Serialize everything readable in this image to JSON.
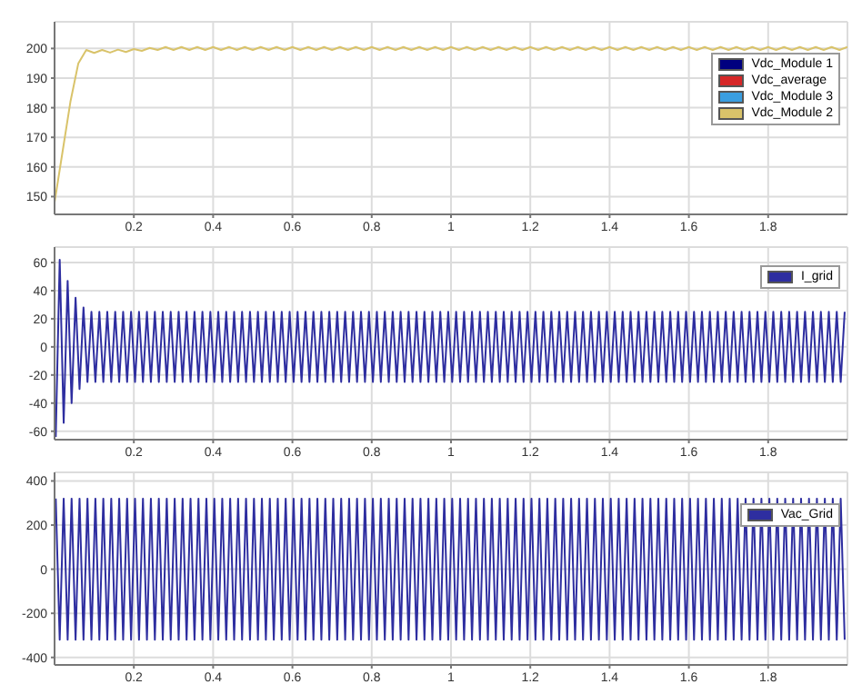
{
  "chart_data": [
    {
      "type": "line",
      "xlim": [
        0,
        2
      ],
      "xticks": [
        0.2,
        0.4,
        0.6,
        0.8,
        1,
        1.2,
        1.4,
        1.6,
        1.8
      ],
      "ylim": [
        144,
        209
      ],
      "yticks": [
        150,
        160,
        170,
        180,
        190,
        200
      ],
      "grid": true,
      "legend": "top right",
      "x": [
        0,
        0.02,
        0.04,
        0.06,
        0.08,
        0.1,
        0.12,
        0.14,
        0.16,
        0.18,
        0.2,
        0.22,
        0.24,
        0.26,
        0.28,
        0.3,
        0.32,
        0.34,
        0.36,
        0.38,
        0.4,
        0.42,
        0.44,
        0.46,
        0.48,
        0.5,
        0.52,
        0.54,
        0.56,
        0.58,
        0.6,
        0.62,
        0.64,
        0.66,
        0.68,
        0.7,
        0.72,
        0.74,
        0.76,
        0.78,
        0.8,
        0.82,
        0.84,
        0.86,
        0.88,
        0.9,
        0.92,
        0.94,
        0.96,
        0.98,
        1,
        1.02,
        1.04,
        1.06,
        1.08,
        1.1,
        1.12,
        1.14,
        1.16,
        1.18,
        1.2,
        1.22,
        1.24,
        1.26,
        1.28,
        1.3,
        1.32,
        1.34,
        1.36,
        1.38,
        1.4,
        1.42,
        1.44,
        1.46,
        1.48,
        1.5,
        1.52,
        1.54,
        1.56,
        1.58,
        1.6,
        1.62,
        1.64,
        1.66,
        1.68,
        1.7,
        1.72,
        1.74,
        1.76,
        1.78,
        1.8,
        1.82,
        1.84,
        1.86,
        1.88,
        1.9,
        1.92,
        1.94,
        1.96,
        1.98,
        2
      ],
      "series": [
        {
          "name": "Vdc_Module 1",
          "color": "#00007f",
          "values": [
            null,
            null,
            null,
            null,
            null,
            null,
            null,
            null,
            null,
            null,
            null,
            null,
            null,
            null,
            null,
            null,
            null,
            null,
            null,
            null,
            null,
            null,
            null,
            null,
            null,
            null,
            null,
            null,
            null,
            null,
            null,
            null,
            null,
            null,
            null,
            null,
            null,
            null,
            null,
            null,
            null,
            null,
            null,
            null,
            null,
            null,
            null,
            null,
            null,
            null,
            null,
            null,
            null,
            null,
            null,
            null,
            null,
            null,
            null,
            null,
            null,
            null,
            null,
            null,
            null,
            null,
            null,
            null,
            null,
            null,
            null,
            null,
            null,
            null,
            null,
            null,
            null,
            null,
            null,
            null,
            null,
            null,
            null,
            null,
            null,
            null,
            null,
            null,
            null,
            null,
            null,
            null,
            null,
            null,
            null,
            null,
            null,
            null,
            null,
            null,
            null
          ]
        },
        {
          "name": "Vdc_average",
          "color": "#d62728",
          "values": [
            null,
            null,
            null,
            null,
            null,
            null,
            null,
            null,
            null,
            null,
            null,
            null,
            null,
            null,
            null,
            null,
            null,
            null,
            null,
            null,
            null,
            null,
            null,
            null,
            null,
            null,
            null,
            null,
            null,
            null,
            null,
            null,
            null,
            null,
            null,
            null,
            null,
            null,
            null,
            null,
            null,
            null,
            null,
            null,
            null,
            null,
            null,
            null,
            null,
            null,
            null,
            null,
            null,
            null,
            null,
            null,
            null,
            null,
            null,
            null,
            null,
            null,
            null,
            null,
            null,
            null,
            null,
            null,
            null,
            null,
            null,
            null,
            null,
            null,
            null,
            null,
            null,
            null,
            null,
            null,
            null,
            null,
            null,
            null,
            null,
            null,
            null,
            null,
            null,
            null,
            null,
            null,
            null,
            null,
            null,
            null,
            null,
            null,
            null,
            null,
            null
          ]
        },
        {
          "name": "Vdc_Module 3",
          "color": "#3a9ee0",
          "values": [
            null,
            null,
            null,
            null,
            null,
            null,
            null,
            null,
            null,
            null,
            null,
            null,
            null,
            null,
            null,
            null,
            null,
            null,
            null,
            null,
            null,
            null,
            null,
            null,
            null,
            null,
            null,
            null,
            null,
            null,
            null,
            null,
            null,
            null,
            null,
            null,
            null,
            null,
            null,
            null,
            null,
            null,
            null,
            null,
            null,
            null,
            null,
            null,
            null,
            null,
            null,
            null,
            null,
            null,
            null,
            null,
            null,
            null,
            null,
            null,
            null,
            null,
            null,
            null,
            null,
            null,
            null,
            null,
            null,
            null,
            null,
            null,
            null,
            null,
            null,
            null,
            null,
            null,
            null,
            null,
            null,
            null,
            null,
            null,
            null,
            null,
            null,
            null,
            null,
            null,
            null,
            null,
            null,
            null,
            null,
            null,
            null,
            null,
            null,
            null,
            null
          ]
        },
        {
          "name": "Vdc_Module 2",
          "color": "#d9c36a",
          "values": [
            148,
            165,
            182,
            195,
            199.5,
            198.5,
            199.5,
            198.6,
            199.6,
            198.8,
            199.8,
            199.2,
            200.2,
            199.5,
            200.5,
            199.5,
            200.5,
            199.5,
            200.5,
            199.5,
            200.5,
            199.5,
            200.5,
            199.5,
            200.5,
            199.5,
            200.5,
            199.5,
            200.5,
            199.5,
            200.5,
            199.5,
            200.5,
            199.5,
            200.5,
            199.5,
            200.5,
            199.5,
            200.5,
            199.5,
            200.5,
            199.5,
            200.5,
            199.5,
            200.5,
            199.5,
            200.5,
            199.5,
            200.5,
            199.5,
            200.5,
            199.5,
            200.5,
            199.5,
            200.5,
            199.5,
            200.5,
            199.5,
            200.5,
            199.5,
            200.5,
            199.5,
            200.5,
            199.5,
            200.5,
            199.5,
            200.5,
            199.5,
            200.5,
            199.5,
            200.5,
            199.5,
            200.5,
            199.5,
            200.5,
            199.5,
            200.5,
            199.5,
            200.5,
            199.5,
            200.5,
            199.5,
            200.5,
            199.5,
            200.5,
            199.5,
            200.5,
            199.5,
            200.5,
            199.5,
            200.5,
            199.5,
            200.5,
            199.5,
            200.5,
            199.5,
            200.5,
            199.5,
            200.5,
            199.5,
            200.5
          ]
        }
      ]
    },
    {
      "type": "line",
      "xlim": [
        0,
        2
      ],
      "xticks": [
        0.2,
        0.4,
        0.6,
        0.8,
        1,
        1.2,
        1.4,
        1.6,
        1.8
      ],
      "ylim": [
        -66,
        71
      ],
      "yticks": [
        -60,
        -40,
        -20,
        0,
        20,
        40,
        60
      ],
      "grid": true,
      "legend": "top right",
      "x": [
        0.003,
        0.013,
        0.023,
        0.033,
        0.043,
        0.053,
        0.063,
        0.073,
        0.083,
        0.093,
        0.103,
        0.113,
        0.123,
        0.133,
        0.143,
        0.153,
        0.163,
        0.173,
        0.183,
        0.193,
        0.203,
        0.213,
        0.223,
        0.233,
        0.243,
        0.253,
        0.263,
        0.273,
        0.283,
        0.293,
        0.303,
        0.313,
        0.323,
        0.333,
        0.343,
        0.353,
        0.363,
        0.373,
        0.383,
        0.393,
        0.403,
        0.413,
        0.423,
        0.433,
        0.443,
        0.453,
        0.463,
        0.473,
        0.483,
        0.493,
        0.503,
        0.513,
        0.523,
        0.533,
        0.543,
        0.553,
        0.563,
        0.573,
        0.583,
        0.593,
        0.603,
        0.613,
        0.623,
        0.633,
        0.643,
        0.653,
        0.663,
        0.673,
        0.683,
        0.693,
        0.703,
        0.713,
        0.723,
        0.733,
        0.743,
        0.753,
        0.763,
        0.773,
        0.783,
        0.793,
        0.803,
        0.813,
        0.823,
        0.833,
        0.843,
        0.853,
        0.863,
        0.873,
        0.883,
        0.893,
        0.903,
        0.913,
        0.923,
        0.933,
        0.943,
        0.953,
        0.963,
        0.973,
        0.983,
        0.993,
        1.003,
        1.013,
        1.023,
        1.033,
        1.043,
        1.053,
        1.063,
        1.073,
        1.083,
        1.093,
        1.103,
        1.113,
        1.123,
        1.133,
        1.143,
        1.153,
        1.163,
        1.173,
        1.183,
        1.193,
        1.203,
        1.213,
        1.223,
        1.233,
        1.243,
        1.253,
        1.263,
        1.273,
        1.283,
        1.293,
        1.303,
        1.313,
        1.323,
        1.333,
        1.343,
        1.353,
        1.363,
        1.373,
        1.383,
        1.393,
        1.403,
        1.413,
        1.423,
        1.433,
        1.443,
        1.453,
        1.463,
        1.473,
        1.483,
        1.493,
        1.503,
        1.513,
        1.523,
        1.533,
        1.543,
        1.553,
        1.563,
        1.573,
        1.583,
        1.593,
        1.603,
        1.613,
        1.623,
        1.633,
        1.643,
        1.653,
        1.663,
        1.673,
        1.683,
        1.693,
        1.703,
        1.713,
        1.723,
        1.733,
        1.743,
        1.753,
        1.763,
        1.773,
        1.783,
        1.793,
        1.803,
        1.813,
        1.823,
        1.833,
        1.843,
        1.853,
        1.863,
        1.873,
        1.883,
        1.893,
        1.903,
        1.913,
        1.923,
        1.933,
        1.943,
        1.953,
        1.963,
        1.973,
        1.983,
        1.993
      ],
      "series": [
        {
          "name": "I_grid",
          "color": "#2e2ea0",
          "values": [
            -64,
            62,
            -54,
            47,
            -40,
            35,
            -30,
            28,
            -25,
            25,
            -25,
            25,
            -25,
            25,
            -25,
            25,
            -25,
            25,
            -25,
            25,
            -25,
            25,
            -25,
            25,
            -25,
            25,
            -25,
            25,
            -25,
            25,
            -25,
            25,
            -25,
            25,
            -25,
            25,
            -25,
            25,
            -25,
            25,
            -25,
            25,
            -25,
            25,
            -25,
            25,
            -25,
            25,
            -25,
            25,
            -25,
            25,
            -25,
            25,
            -25,
            25,
            -25,
            25,
            -25,
            25,
            -25,
            25,
            -25,
            25,
            -25,
            25,
            -25,
            25,
            -25,
            25,
            -25,
            25,
            -25,
            25,
            -25,
            25,
            -25,
            25,
            -25,
            25,
            -25,
            25,
            -25,
            25,
            -25,
            25,
            -25,
            25,
            -25,
            25,
            -25,
            25,
            -25,
            25,
            -25,
            25,
            -25,
            25,
            -25,
            25,
            -25,
            25,
            -25,
            25,
            -25,
            25,
            -25,
            25,
            -25,
            25,
            -25,
            25,
            -25,
            25,
            -25,
            25,
            -25,
            25,
            -25,
            25,
            -25,
            25,
            -25,
            25,
            -25,
            25,
            -25,
            25,
            -25,
            25,
            -25,
            25,
            -25,
            25,
            -25,
            25,
            -25,
            25,
            -25,
            25,
            -25,
            25,
            -25,
            25,
            -25,
            25,
            -25,
            25,
            -25,
            25,
            -25,
            25,
            -25,
            25,
            -25,
            25,
            -25,
            25,
            -25,
            25,
            -25,
            25,
            -25,
            25,
            -25,
            25,
            -25,
            25,
            -25,
            25,
            -25,
            25,
            -25,
            25,
            -25,
            25,
            -25,
            25,
            -25,
            25,
            -25,
            25,
            -25,
            25,
            -25,
            25,
            -25,
            25,
            -25,
            25,
            -25,
            25,
            -25,
            25,
            -25,
            25,
            -25,
            25,
            -25,
            25
          ]
        }
      ]
    },
    {
      "type": "line",
      "xlim": [
        0,
        2
      ],
      "xticks": [
        0.2,
        0.4,
        0.6,
        0.8,
        1,
        1.2,
        1.4,
        1.6,
        1.8
      ],
      "ylim": [
        -434,
        439
      ],
      "yticks": [
        -400,
        -200,
        0,
        200,
        400
      ],
      "grid": true,
      "legend": "top right",
      "x": [
        0.003,
        0.013,
        0.023,
        0.033,
        0.043,
        0.053,
        0.063,
        0.073,
        0.083,
        0.093,
        0.103,
        0.113,
        0.123,
        0.133,
        0.143,
        0.153,
        0.163,
        0.173,
        0.183,
        0.193,
        0.203,
        0.213,
        0.223,
        0.233,
        0.243,
        0.253,
        0.263,
        0.273,
        0.283,
        0.293,
        0.303,
        0.313,
        0.323,
        0.333,
        0.343,
        0.353,
        0.363,
        0.373,
        0.383,
        0.393,
        0.403,
        0.413,
        0.423,
        0.433,
        0.443,
        0.453,
        0.463,
        0.473,
        0.483,
        0.493,
        0.503,
        0.513,
        0.523,
        0.533,
        0.543,
        0.553,
        0.563,
        0.573,
        0.583,
        0.593,
        0.603,
        0.613,
        0.623,
        0.633,
        0.643,
        0.653,
        0.663,
        0.673,
        0.683,
        0.693,
        0.703,
        0.713,
        0.723,
        0.733,
        0.743,
        0.753,
        0.763,
        0.773,
        0.783,
        0.793,
        0.803,
        0.813,
        0.823,
        0.833,
        0.843,
        0.853,
        0.863,
        0.873,
        0.883,
        0.893,
        0.903,
        0.913,
        0.923,
        0.933,
        0.943,
        0.953,
        0.963,
        0.973,
        0.983,
        0.993,
        1.003,
        1.013,
        1.023,
        1.033,
        1.043,
        1.053,
        1.063,
        1.073,
        1.083,
        1.093,
        1.103,
        1.113,
        1.123,
        1.133,
        1.143,
        1.153,
        1.163,
        1.173,
        1.183,
        1.193,
        1.203,
        1.213,
        1.223,
        1.233,
        1.243,
        1.253,
        1.263,
        1.273,
        1.283,
        1.293,
        1.303,
        1.313,
        1.323,
        1.333,
        1.343,
        1.353,
        1.363,
        1.373,
        1.383,
        1.393,
        1.403,
        1.413,
        1.423,
        1.433,
        1.443,
        1.453,
        1.463,
        1.473,
        1.483,
        1.493,
        1.503,
        1.513,
        1.523,
        1.533,
        1.543,
        1.553,
        1.563,
        1.573,
        1.583,
        1.593,
        1.603,
        1.613,
        1.623,
        1.633,
        1.643,
        1.653,
        1.663,
        1.673,
        1.683,
        1.693,
        1.703,
        1.713,
        1.723,
        1.733,
        1.743,
        1.753,
        1.763,
        1.773,
        1.783,
        1.793,
        1.803,
        1.813,
        1.823,
        1.833,
        1.843,
        1.853,
        1.863,
        1.873,
        1.883,
        1.893,
        1.903,
        1.913,
        1.923,
        1.933,
        1.943,
        1.953,
        1.963,
        1.973,
        1.983,
        1.993
      ],
      "series": [
        {
          "name": "Vac_Grid",
          "color": "#2e2ea0",
          "values": [
            320,
            -320,
            320,
            -320,
            320,
            -320,
            320,
            -320,
            320,
            -320,
            320,
            -320,
            320,
            -320,
            320,
            -320,
            320,
            -320,
            320,
            -320,
            320,
            -320,
            320,
            -320,
            320,
            -320,
            320,
            -320,
            320,
            -320,
            320,
            -320,
            320,
            -320,
            320,
            -320,
            320,
            -320,
            320,
            -320,
            320,
            -320,
            320,
            -320,
            320,
            -320,
            320,
            -320,
            320,
            -320,
            320,
            -320,
            320,
            -320,
            320,
            -320,
            320,
            -320,
            320,
            -320,
            320,
            -320,
            320,
            -320,
            320,
            -320,
            320,
            -320,
            320,
            -320,
            320,
            -320,
            320,
            -320,
            320,
            -320,
            320,
            -320,
            320,
            -320,
            320,
            -320,
            320,
            -320,
            320,
            -320,
            320,
            -320,
            320,
            -320,
            320,
            -320,
            320,
            -320,
            320,
            -320,
            320,
            -320,
            320,
            -320,
            320,
            -320,
            320,
            -320,
            320,
            -320,
            320,
            -320,
            320,
            -320,
            320,
            -320,
            320,
            -320,
            320,
            -320,
            320,
            -320,
            320,
            -320,
            320,
            -320,
            320,
            -320,
            320,
            -320,
            320,
            -320,
            320,
            -320,
            320,
            -320,
            320,
            -320,
            320,
            -320,
            320,
            -320,
            320,
            -320,
            320,
            -320,
            320,
            -320,
            320,
            -320,
            320,
            -320,
            320,
            -320,
            320,
            -320,
            320,
            -320,
            320,
            -320,
            320,
            -320,
            320,
            -320,
            320,
            -320,
            320,
            -320,
            320,
            -320,
            320,
            -320,
            320,
            -320,
            320,
            -320,
            320,
            -320,
            320,
            -320,
            320,
            -320,
            320,
            -320,
            320,
            -320,
            320,
            -320,
            320,
            -320,
            320,
            -320,
            320,
            -320,
            320,
            -320,
            320,
            -320,
            320,
            -320,
            320,
            -320,
            320,
            -320
          ]
        }
      ]
    }
  ]
}
